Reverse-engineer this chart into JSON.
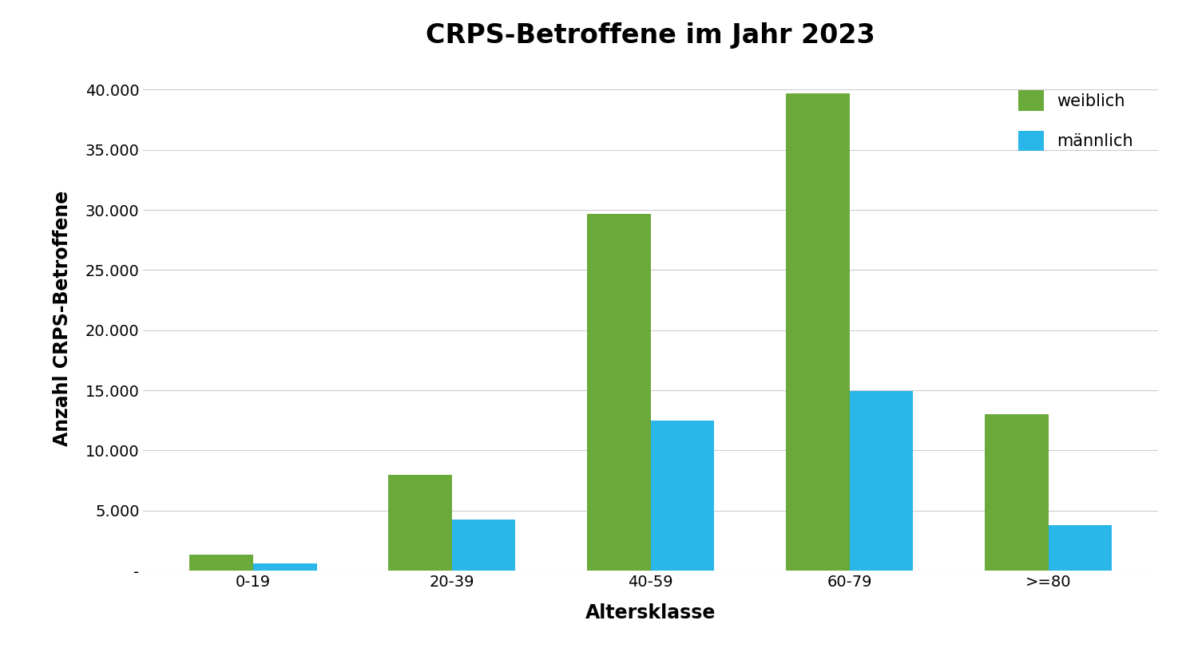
{
  "title": "CRPS-Betroffene im Jahr 2023",
  "xlabel": "Altersklasse",
  "ylabel": "Anzahl CRPS-Betroffene",
  "categories": [
    "0-19",
    "20-39",
    "40-59",
    "60-79",
    ">=80"
  ],
  "weiblich": [
    1355,
    7962,
    29645,
    39676,
    13018
  ],
  "maennlich": [
    598,
    4237,
    12508,
    14949,
    3822
  ],
  "color_weiblich": "#6aaa3a",
  "color_maennlich": "#29b6e8",
  "legend_weiblich": "weiblich",
  "legend_maennlich": "männlich",
  "ylim": [
    0,
    42000
  ],
  "yticks": [
    0,
    5000,
    10000,
    15000,
    20000,
    25000,
    30000,
    35000,
    40000
  ],
  "ytick_labels": [
    "-",
    "5.000",
    "10.000",
    "15.000",
    "20.000",
    "25.000",
    "30.000",
    "35.000",
    "40.000"
  ],
  "background_color": "#ffffff",
  "grid_color": "#cccccc",
  "bar_width": 0.32,
  "title_fontsize": 24,
  "axis_label_fontsize": 17,
  "tick_fontsize": 14,
  "legend_fontsize": 15
}
